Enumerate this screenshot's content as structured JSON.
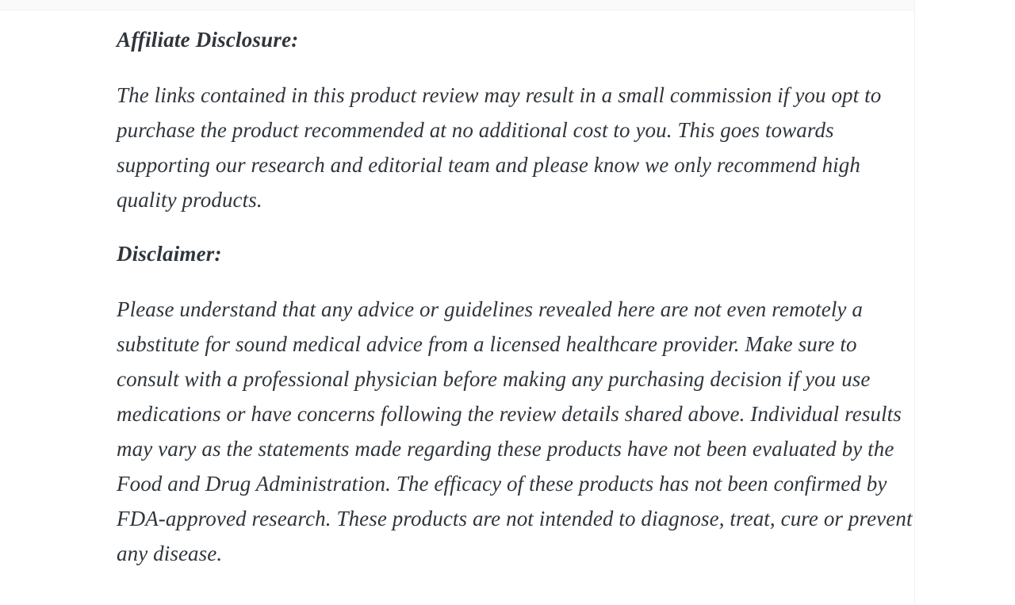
{
  "colors": {
    "page_background": "#ffffff",
    "text": "#2f353b",
    "top_strip": "#fafafa",
    "divider": "#f0f0f0"
  },
  "article": {
    "sections": [
      {
        "heading": "Affiliate Disclosure:",
        "body": "The links contained in this product review may result in a small commission if you opt to purchase the product recommended at no additional cost to you. This goes towards supporting our research and editorial team and please know we only recommend high quality products."
      },
      {
        "heading": "Disclaimer:",
        "body": "Please understand that any advice or guidelines revealed here are not even remotely a substitute for sound medical advice from a licensed healthcare provider. Make sure to consult with a professional physician before making any purchasing decision if you use medications or have concerns following the review details shared above. Individual results may vary as the statements made regarding these products have not been evaluated by the Food and Drug Administration. The efficacy of these products has not been confirmed by FDA-approved research. These products are not intended to diagnose, treat, cure or prevent any disease."
      }
    ]
  }
}
